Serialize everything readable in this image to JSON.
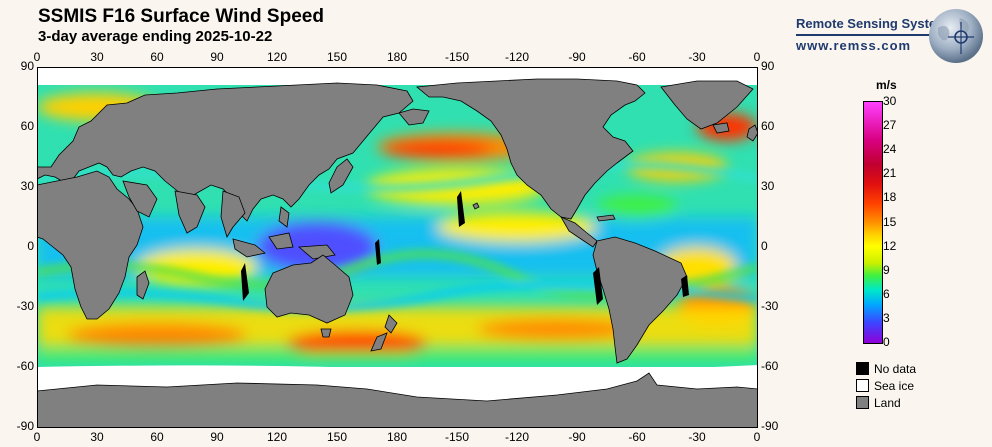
{
  "header": {
    "title": "SSMIS F16 Surface Wind Speed",
    "subtitle": "3-day average ending 2025-10-22",
    "brand": "Remote Sensing Systems",
    "site": "www.remss.com"
  },
  "axes": {
    "lon_ticks": [
      "0",
      "30",
      "60",
      "90",
      "120",
      "150",
      "180",
      "-150",
      "-120",
      "-90",
      "-60",
      "-30",
      "0"
    ],
    "lat_ticks": [
      "90",
      "60",
      "30",
      "0",
      "-30",
      "-60",
      "-90"
    ]
  },
  "colorbar": {
    "unit": "m/s",
    "ticks": [
      "0",
      "3",
      "6",
      "9",
      "12",
      "15",
      "18",
      "21",
      "24",
      "27",
      "30"
    ]
  },
  "legend": {
    "items": [
      {
        "label": "No data",
        "color": "#000000"
      },
      {
        "label": "Sea ice",
        "color": "#ffffff"
      },
      {
        "label": "Land",
        "color": "#808080"
      }
    ]
  },
  "colors": {
    "land": "#808080",
    "ice": "#ffffff",
    "brand": "#1f3a6e"
  }
}
